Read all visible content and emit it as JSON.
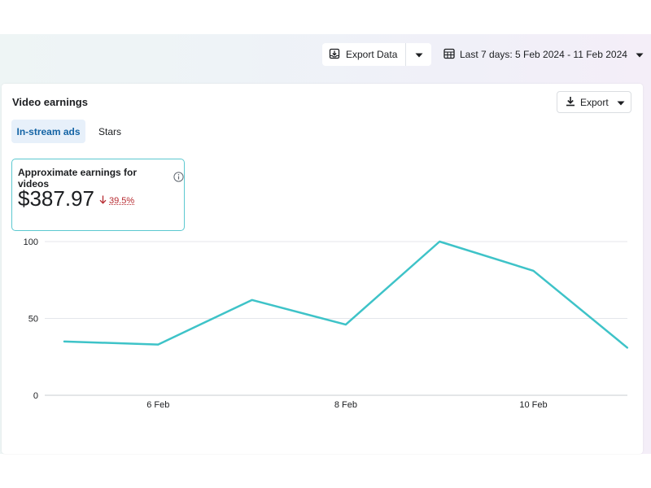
{
  "toolbar": {
    "export_data_label": "Export Data",
    "date_range_label": "Last 7 days: 5 Feb 2024 - 11 Feb 2024"
  },
  "card": {
    "title": "Video earnings",
    "export_label": "Export",
    "tabs": [
      {
        "label": "In-stream ads",
        "active": true
      },
      {
        "label": "Stars",
        "active": false
      }
    ]
  },
  "metric": {
    "label": "Approximate earnings for videos",
    "value": "$387.97",
    "change": "39.5%",
    "change_direction": "down"
  },
  "icons": {
    "export_data": "download-tray-icon",
    "dropdown": "caret-down-icon",
    "calendar": "calendar-grid-icon",
    "export": "download-icon",
    "info": "info-icon",
    "arrow_down": "arrow-down-icon"
  },
  "colors": {
    "accent_line": "#3ec3c8",
    "active_tab_bg": "#e7f0fa",
    "active_tab_text": "#1464a5",
    "negative": "#b62a30"
  },
  "chart_data": {
    "type": "line",
    "x": [
      "5 Feb",
      "6 Feb",
      "7 Feb",
      "8 Feb",
      "9 Feb",
      "10 Feb",
      "11 Feb"
    ],
    "x_tick_labels": [
      "6 Feb",
      "8 Feb",
      "10 Feb"
    ],
    "series": [
      {
        "values": [
          35,
          33,
          62,
          46,
          100,
          81,
          31
        ]
      }
    ],
    "y_ticks": [
      0,
      50,
      100
    ],
    "ylim": [
      0,
      100
    ],
    "grid": true,
    "legend": "none"
  }
}
